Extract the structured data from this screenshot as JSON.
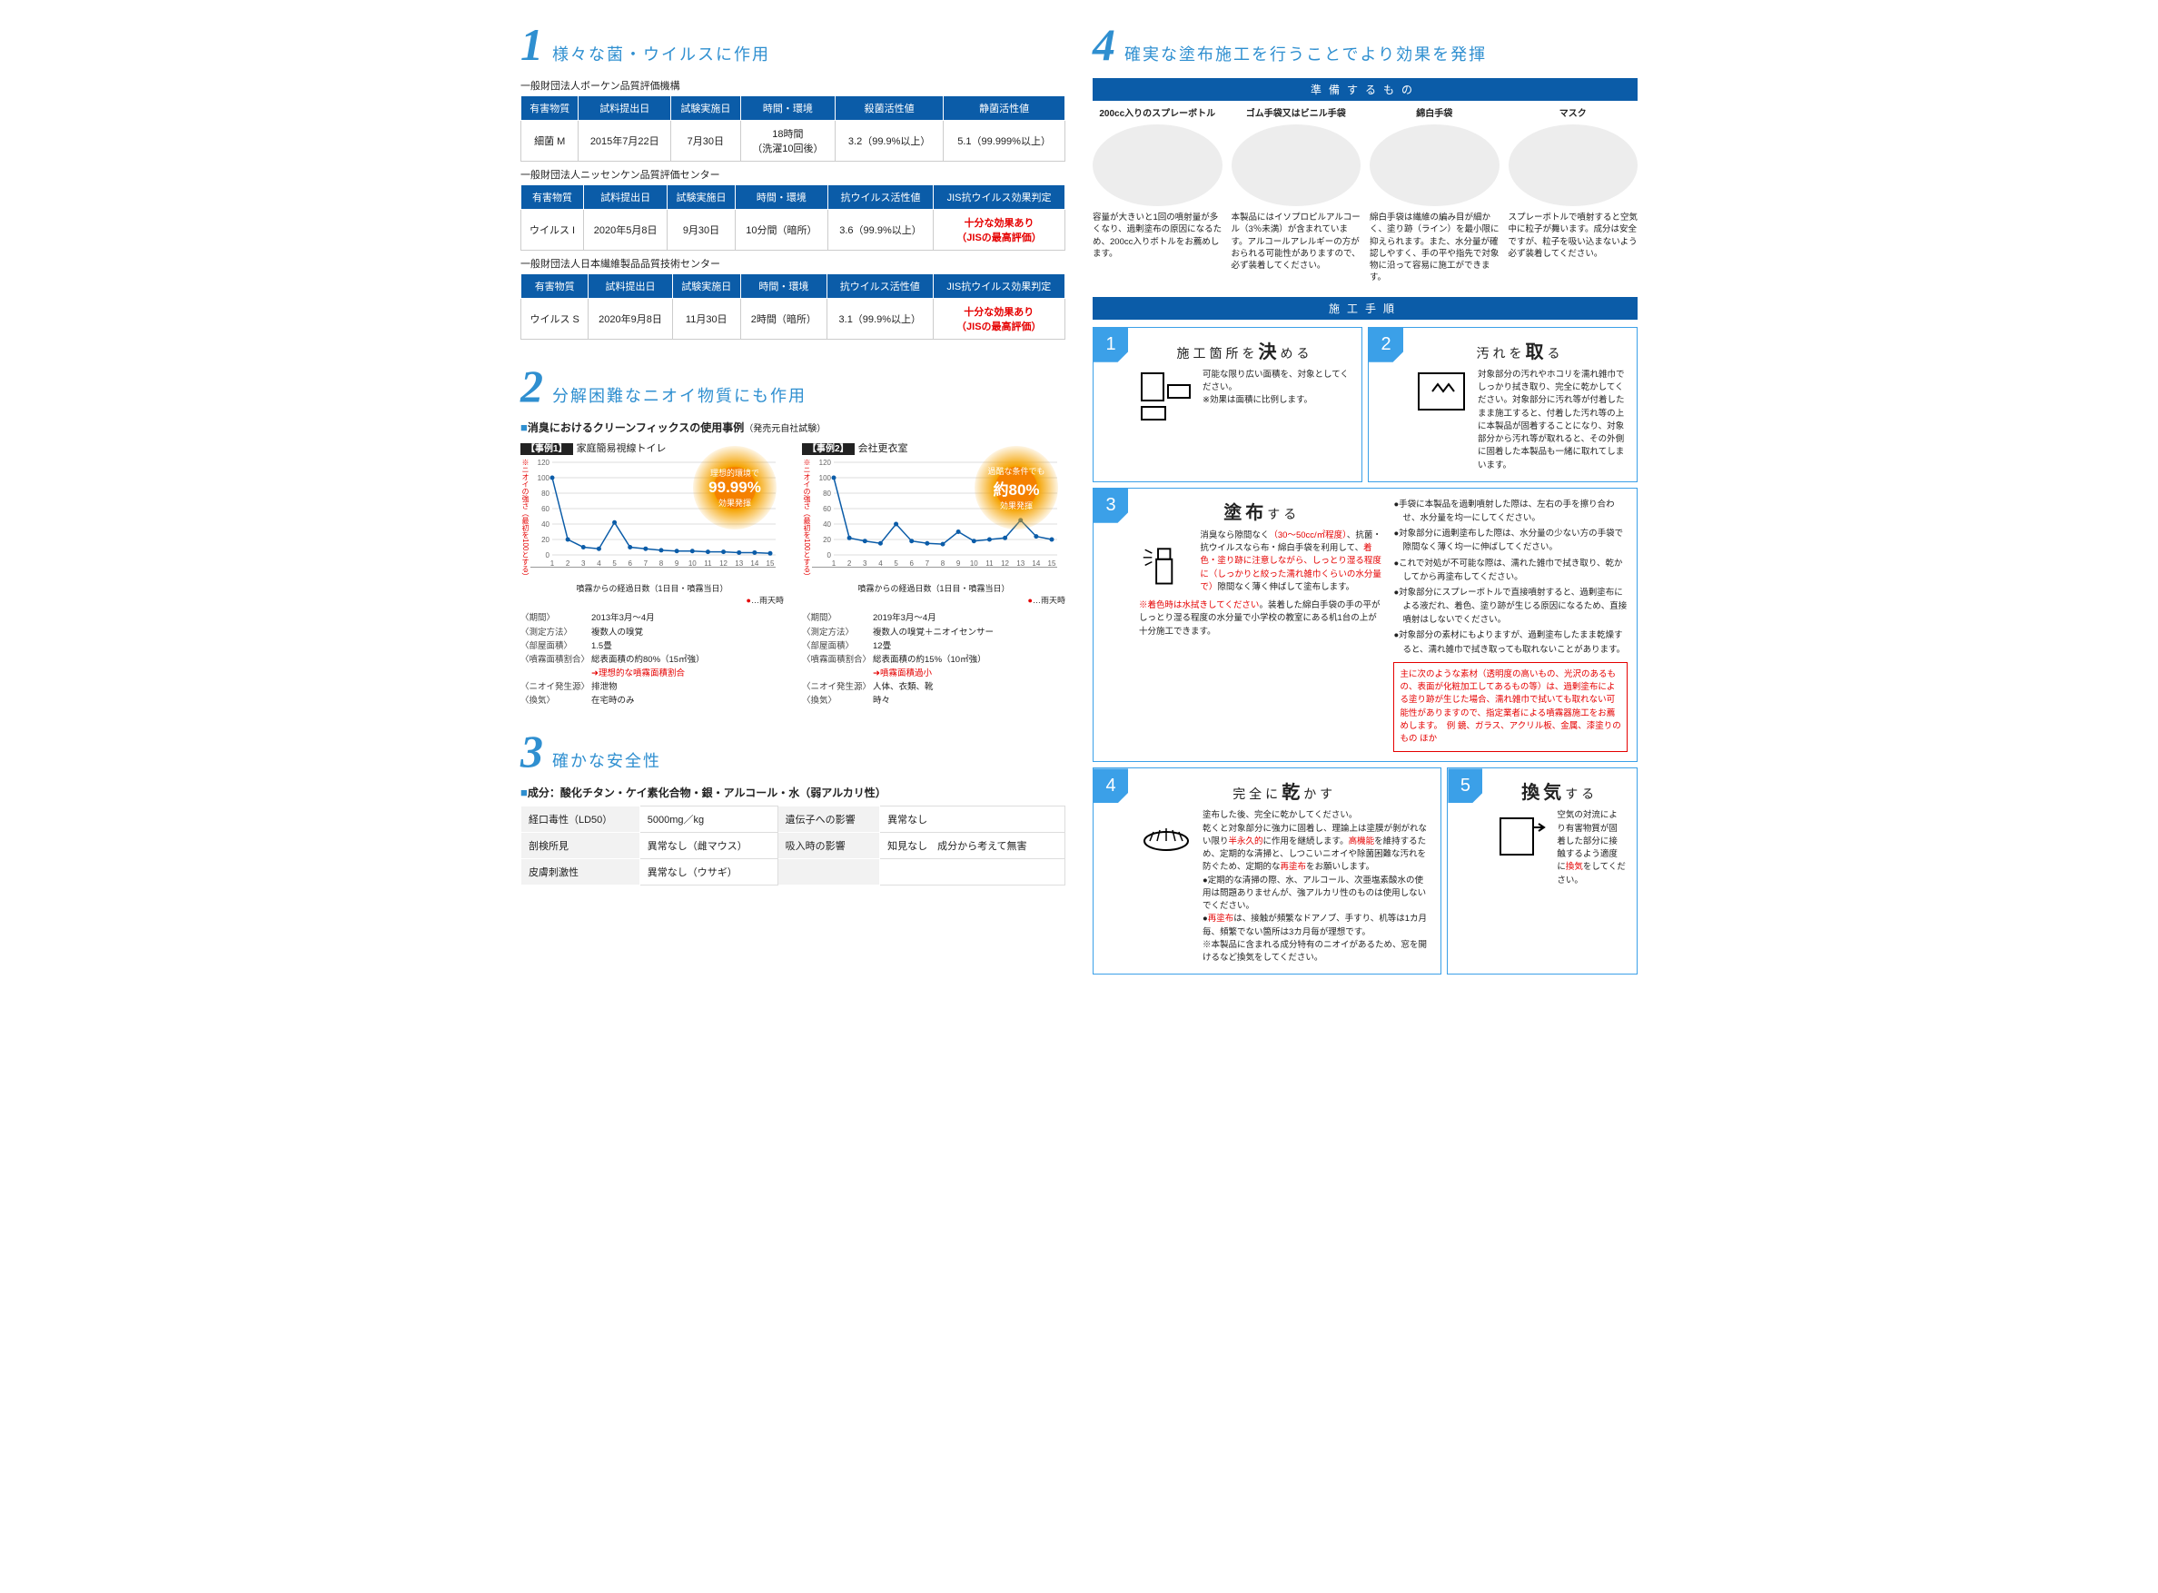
{
  "section1": {
    "num": "1",
    "title": "様々な菌・ウイルスに作用",
    "org1": "一般財団法人ボーケン品質評価機構",
    "headers1": [
      "有害物質",
      "試料提出日",
      "試験実施日",
      "時間・環境",
      "殺菌活性値",
      "静菌活性値"
    ],
    "row1": [
      "細菌 M",
      "2015年7月22日",
      "7月30日",
      "18時間\n（洗濯10回後）",
      "3.2（99.9%以上）",
      "5.1（99.999%以上）"
    ],
    "org2": "一般財団法人ニッセンケン品質評価センター",
    "headers2": [
      "有害物質",
      "試料提出日",
      "試験実施日",
      "時間・環境",
      "抗ウイルス活性値",
      "JIS抗ウイルス効果判定"
    ],
    "row2": [
      "ウイルス I",
      "2020年5月8日",
      "9月30日",
      "10分間（暗所）",
      "3.6（99.9%以上）",
      "十分な効果あり\n（JISの最高評価）"
    ],
    "org3": "一般財団法人日本繊維製品品質技術センター",
    "row3": [
      "ウイルス S",
      "2020年9月8日",
      "11月30日",
      "2時間（暗所）",
      "3.1（99.9%以上）",
      "十分な効果あり\n（JISの最高評価）"
    ]
  },
  "section2": {
    "num": "2",
    "title": "分解困難なニオイ物質にも作用",
    "heading": "■消臭におけるクリーンフィックスの使用事例（発売元自社試験）",
    "ylabel": "※ニオイの強さ（最初を100とする）",
    "xlabel": "噴霧からの経過日数（1日目・噴霧当日）",
    "legend": "…雨天時",
    "case1": {
      "tag": "【事例1】",
      "name": "家庭簡易視線トイレ",
      "burst_top": "理想的環境で",
      "pct": "99.99%",
      "burst_bot": "効果発揮",
      "xticks": [
        1,
        2,
        3,
        4,
        5,
        6,
        7,
        8,
        9,
        10,
        11,
        12,
        13,
        14,
        15
      ],
      "data": [
        100,
        20,
        10,
        8,
        42,
        10,
        8,
        6,
        5,
        5,
        4,
        4,
        3,
        3,
        2
      ],
      "ymax": 120,
      "ystep": 20,
      "meta": [
        [
          "〈期間〉",
          "2013年3月～4月"
        ],
        [
          "〈測定方法〉",
          "複数人の嗅覚"
        ],
        [
          "〈部屋面積〉",
          "1.5畳"
        ],
        [
          "〈噴霧面積割合〉",
          "総表面積の約80%（15㎡強）"
        ],
        [
          "",
          "➜理想的な噴霧面積割合",
          "red"
        ],
        [
          "〈ニオイ発生源〉",
          "排泄物"
        ],
        [
          "〈換気〉",
          "在宅時のみ"
        ]
      ]
    },
    "case2": {
      "tag": "【事例2】",
      "name": "会社更衣室",
      "burst_top": "過酷な条件でも",
      "pct": "約80%",
      "burst_bot": "効果発揮",
      "xticks": [
        1,
        2,
        3,
        4,
        5,
        6,
        7,
        8,
        9,
        10,
        11,
        12,
        13,
        14,
        15
      ],
      "data": [
        100,
        22,
        18,
        15,
        40,
        18,
        15,
        14,
        30,
        18,
        20,
        22,
        45,
        24,
        20
      ],
      "ymax": 120,
      "ystep": 20,
      "meta": [
        [
          "〈期間〉",
          "2019年3月～4月"
        ],
        [
          "〈測定方法〉",
          "複数人の嗅覚＋ニオイセンサー"
        ],
        [
          "〈部屋面積〉",
          "12畳"
        ],
        [
          "〈噴霧面積割合〉",
          "総表面積の約15%（10㎡強）"
        ],
        [
          "",
          "➜噴霧面積過小",
          "red"
        ],
        [
          "〈ニオイ発生源〉",
          "人体、衣類、靴"
        ],
        [
          "〈換気〉",
          "時々"
        ]
      ]
    }
  },
  "section3": {
    "num": "3",
    "title": "確かな安全性",
    "heading": "■成分：酸化チタン・ケイ素化合物・銀・アルコール・水（弱アルカリ性）",
    "rows": [
      [
        "経口毒性（LD50）",
        "5000mg／kg",
        "遺伝子への影響",
        "異常なし"
      ],
      [
        "剖検所見",
        "異常なし（雌マウス）",
        "吸入時の影響",
        "知見なし　成分から考えて無害"
      ],
      [
        "皮膚刺激性",
        "異常なし（ウサギ）",
        "",
        ""
      ]
    ]
  },
  "section4": {
    "num": "4",
    "title": "確実な塗布施工を行うことでより効果を発揮",
    "band1": "準備するもの",
    "prep": [
      {
        "t": "200cc入りのスプレーボトル",
        "d": "容量が大きいと1回の噴射量が多くなり、過剰塗布の原因になるため、200cc入りボトルをお薦めします。"
      },
      {
        "t": "ゴム手袋又はビニル手袋",
        "d": "本製品にはイソプロピルアルコール（3％未満）が含まれています。アルコールアレルギーの方がおられる可能性がありますので、必ず装着してください。"
      },
      {
        "t": "綿白手袋",
        "d": "綿白手袋は繊維の編み目が細かく、塗り跡（ライン）を最小限に抑えられます。また、水分量が確認しやすく、手の平や指先で対象物に沿って容易に施工ができます。"
      },
      {
        "t": "マスク",
        "d": "スプレーボトルで噴射すると空気中に粒子が舞います。成分は安全ですが、粒子を吸い込まないよう必ず装着してください。"
      }
    ],
    "band2": "施工手順",
    "steps": {
      "s1": {
        "n": "1",
        "title": "施工箇所を",
        "em": "決",
        "after": "める",
        "body": "可能な限り広い面積を、対象としてください。\n※効果は面積に比例します。"
      },
      "s2": {
        "n": "2",
        "title": "汚れを",
        "em": "取",
        "after": "る",
        "body": "対象部分の汚れやホコリを濡れ雑巾でしっかり拭き取り、完全に乾かしてください。対象部分に汚れ等が付着したまま施工すると、付着した汚れ等の上に本製品が固着することになり、対象部分から汚れ等が取れると、その外側に固着した本製品も一緒に取れてしまいます。"
      },
      "s3": {
        "n": "3",
        "em": "塗布",
        "after": "する",
        "body": "消臭なら隙間なく（30～50cc/㎡程度）、抗菌・抗ウイルスなら布・綿白手袋を利用して、着色・塗り跡に注意しながら、しっとり湿る程度に（しっかりと絞った濡れ雑巾くらいの水分量で）隙間なく薄く伸ばして塗布します。",
        "note": "※着色時は水拭きしてください。装着した綿白手袋の手の平がしっとり湿る程度の水分量で小学校の教室にある机1台の上が十分施工できます。",
        "bullets": [
          "●手袋に本製品を過剰噴射した際は、左右の手を擦り合わせ、水分量を均一にしてください。",
          "●対象部分に過剰塗布した際は、水分量の少ない方の手袋で隙間なく薄く均一に伸ばしてください。",
          "●これで対処が不可能な際は、濡れた雑巾で拭き取り、乾かしてから再塗布してください。",
          "●対象部分にスプレーボトルで直接噴射すると、過剰塗布による液だれ、着色、塗り跡が生じる原因になるため、直接噴射はしないでください。",
          "●対象部分の素材にもよりますが、過剰塗布したまま乾燥すると、濡れ雑巾で拭き取っても取れないことがあります。"
        ],
        "warn": "主に次のような素材（透明度の高いもの、光沢のあるもの、表面が化粧加工してあるもの等）は、過剰塗布による塗り跡が生じた場合、濡れ雑巾で拭いても取れない可能性がありますので、指定業者による噴霧器施工をお薦めします。　例 鏡、ガラス、アクリル板、金属、漆塗りのもの ほか"
      },
      "s4": {
        "n": "4",
        "title": "完全に",
        "em": "乾",
        "after": "かす",
        "bullets": [
          "塗布した後、完全に乾かしてください。",
          "乾くと対象部分に強力に固着し、理論上は塗膜が剝がれない限り半永久的に作用を継続します。高機能を維持するため、定期的な清掃と、しつこいニオイや除菌困難な汚れを防ぐため、定期的な再塗布をお願いします。",
          "●定期的な清掃の際、水、アルコール、次亜塩素酸水の使用は問題ありませんが、強アルカリ性のものは使用しないでください。",
          "●再塗布は、接触が頻繁なドアノブ、手すり、机等は1カ月毎、頻繁でない箇所は3カ月毎が理想です。",
          "※本製品に含まれる成分特有のニオイがあるため、窓を開けるなど換気をしてください。"
        ]
      },
      "s5": {
        "n": "5",
        "em": "換気",
        "after": "する",
        "body": "空気の対流により有害物質が固着した部分に接触するよう適度に換気をしてください。"
      }
    }
  },
  "colors": {
    "blue": "#0b5ca8",
    "lblue": "#3ba0e8",
    "red": "#e50000",
    "orange": "#f58100"
  }
}
